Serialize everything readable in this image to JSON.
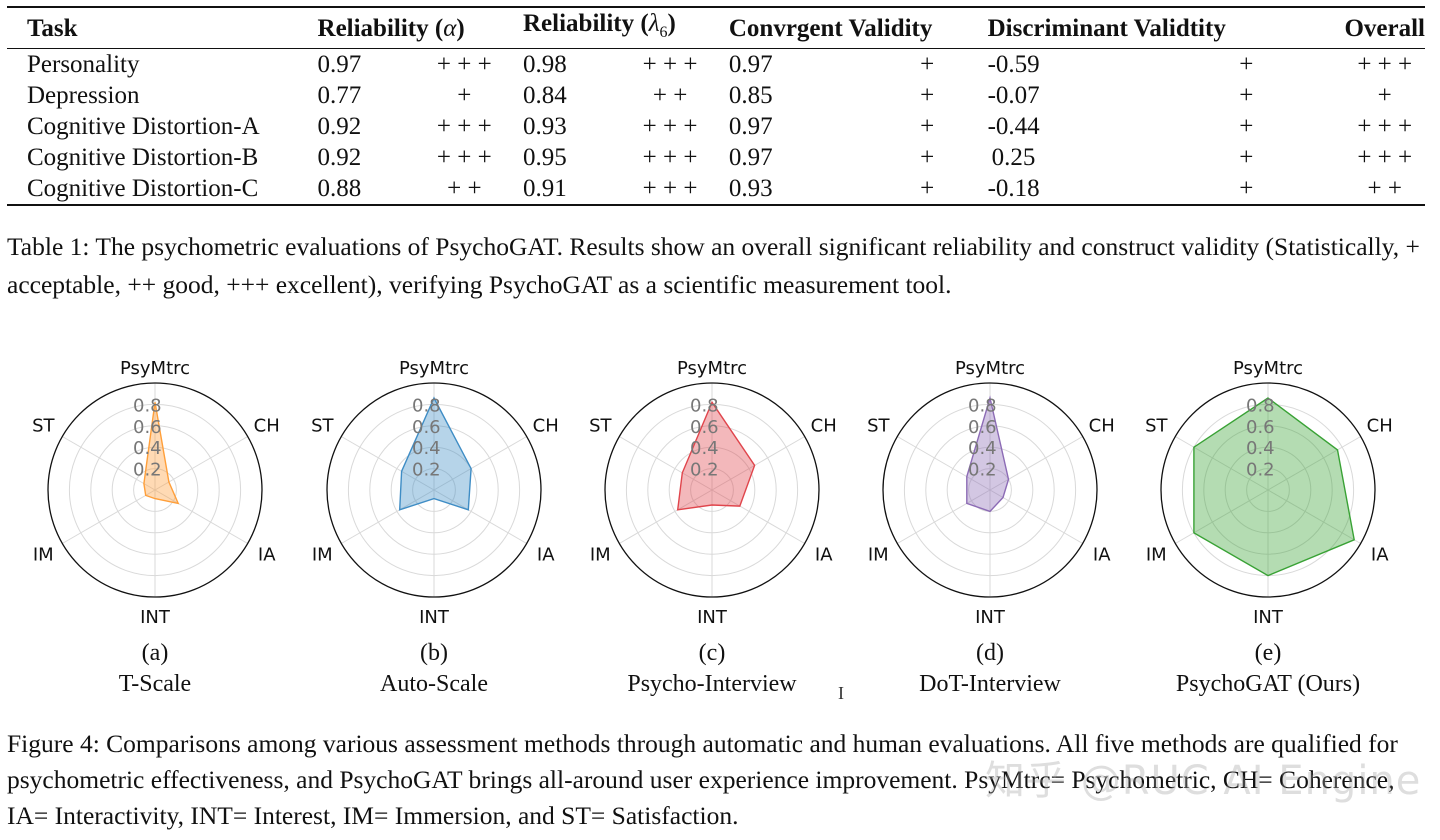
{
  "table": {
    "headers": {
      "task": "Task",
      "reliability_alpha_label": "Reliability (",
      "reliability_alpha_symbol": "α",
      "reliability_lambda_label": "Reliability (",
      "reliability_lambda_symbol": "λ",
      "reliability_lambda_subscript": "6",
      "convergent": "Convrgent Validity",
      "discriminant": "Discriminant Validtity",
      "overall": "Overall"
    },
    "rows": [
      {
        "task": "Personality",
        "alpha": "0.97",
        "alpha_mark": "+ + +",
        "lambda6": "0.98",
        "lambda6_mark": "+ + +",
        "convergent": "0.97",
        "convergent_mark": "+",
        "discriminant": "-0.59",
        "discriminant_mark": "+",
        "overall": "+ + +"
      },
      {
        "task": "Depression",
        "alpha": "0.77",
        "alpha_mark": "+",
        "lambda6": "0.84",
        "lambda6_mark": "+ +",
        "convergent": "0.85",
        "convergent_mark": "+",
        "discriminant": "-0.07",
        "discriminant_mark": "+",
        "overall": "+"
      },
      {
        "task": "Cognitive Distortion-A",
        "alpha": "0.92",
        "alpha_mark": "+ + +",
        "lambda6": "0.93",
        "lambda6_mark": "+ + +",
        "convergent": "0.97",
        "convergent_mark": "+",
        "discriminant": "-0.44",
        "discriminant_mark": "+",
        "overall": "+ + +"
      },
      {
        "task": "Cognitive Distortion-B",
        "alpha": "0.92",
        "alpha_mark": "+ + +",
        "lambda6": "0.95",
        "lambda6_mark": "+ + +",
        "convergent": "0.97",
        "convergent_mark": "+",
        "discriminant": "0.25",
        "discriminant_mark": "+",
        "overall": "+ + +"
      },
      {
        "task": "Cognitive Distortion-C",
        "alpha": "0.88",
        "alpha_mark": "+ +",
        "lambda6": "0.91",
        "lambda6_mark": "+ + +",
        "convergent": "0.93",
        "convergent_mark": "+",
        "discriminant": "-0.18",
        "discriminant_mark": "+",
        "overall": "+ +"
      }
    ]
  },
  "table_caption": "Table 1:  The psychometric evaluations of PsychoGAT. Results show an overall significant reliability and construct validity (Statistically, + acceptable, ++ good, +++ excellent), verifying PsychoGAT as a scientific measurement tool.",
  "figure_caption": "Figure 4: Comparisons among various assessment methods through automatic and human evaluations. All five methods are qualified for psychometric effectiveness, and PsychoGAT brings all-around user experience improvement. PsyMtrc= Psychometric, CH= Coherence, IA= Interactivity, INT= Interest, IM= Immersion, and ST= Satisfaction.",
  "watermark": "知乎 @RUC AI Engine",
  "cursor_glyph": "I",
  "chart_data": [
    {
      "type": "radar",
      "id": "a",
      "letter": "(a)",
      "name": "T-Scale",
      "color": "#ff9f3a",
      "axes": [
        "PsyMtrc",
        "CH",
        "IA",
        "INT",
        "IM",
        "ST"
      ],
      "values": [
        0.82,
        0.15,
        0.25,
        0.08,
        0.1,
        0.12
      ],
      "rticks": [
        "0.2",
        "0.4",
        "0.6",
        "0.8"
      ],
      "rmax": 1.0
    },
    {
      "type": "radar",
      "id": "b",
      "letter": "(b)",
      "name": "Auto-Scale",
      "color": "#3f8dc5",
      "axes": [
        "PsyMtrc",
        "CH",
        "IA",
        "INT",
        "IM",
        "ST"
      ],
      "values": [
        0.86,
        0.4,
        0.37,
        0.08,
        0.37,
        0.35
      ],
      "rticks": [
        "0.2",
        "0.4",
        "0.6",
        "0.8"
      ],
      "rmax": 1.0
    },
    {
      "type": "radar",
      "id": "c",
      "letter": "(c)",
      "name": "Psycho-Interview",
      "color": "#e0454c",
      "axes": [
        "PsyMtrc",
        "CH",
        "IA",
        "INT",
        "IM",
        "ST"
      ],
      "values": [
        0.82,
        0.46,
        0.3,
        0.14,
        0.37,
        0.32
      ],
      "rticks": [
        "0.2",
        "0.4",
        "0.6",
        "0.8"
      ],
      "rmax": 1.0
    },
    {
      "type": "radar",
      "id": "d",
      "letter": "(d)",
      "name": "DoT-Interview",
      "color": "#8c6bb5",
      "axes": [
        "PsyMtrc",
        "CH",
        "IA",
        "INT",
        "IM",
        "ST"
      ],
      "values": [
        0.86,
        0.2,
        0.14,
        0.2,
        0.25,
        0.25
      ],
      "rticks": [
        "0.2",
        "0.4",
        "0.6",
        "0.8"
      ],
      "rmax": 1.0
    },
    {
      "type": "radar",
      "id": "e",
      "letter": "(e)",
      "name": "PsychoGAT (Ours)",
      "color": "#39a235",
      "axes": [
        "PsyMtrc",
        "CH",
        "IA",
        "INT",
        "IM",
        "ST"
      ],
      "values": [
        0.86,
        0.75,
        0.93,
        0.8,
        0.8,
        0.8
      ],
      "rticks": [
        "0.2",
        "0.4",
        "0.6",
        "0.8"
      ],
      "rmax": 1.0
    }
  ]
}
